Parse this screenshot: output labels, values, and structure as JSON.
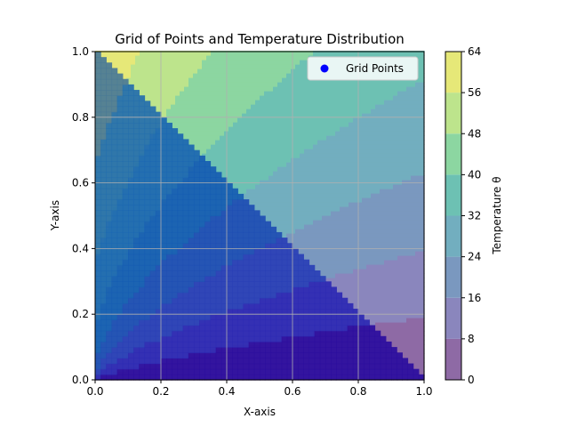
{
  "chart_data": {
    "type": "contour",
    "title": "Grid of Points and Temperature Distribution",
    "xlabel": "X-axis",
    "ylabel": "Y-axis",
    "xlim": [
      0,
      1
    ],
    "ylim": [
      0,
      1
    ],
    "xticks": [
      "0.0",
      "0.2",
      "0.4",
      "0.6",
      "0.8",
      "1.0"
    ],
    "yticks": [
      "0.0",
      "0.2",
      "0.4",
      "0.6",
      "0.8",
      "1.0"
    ],
    "grid": true,
    "legend": {
      "placement": "top-right",
      "entries": [
        {
          "label": "Grid Points",
          "color": "#0000ff",
          "marker": "circle"
        }
      ]
    },
    "colorbar": {
      "label": "Temperature θ",
      "levels": [
        0,
        8,
        16,
        24,
        32,
        40,
        48,
        56,
        64
      ],
      "tick_labels": [
        "0",
        "8",
        "16",
        "24",
        "32",
        "40",
        "48",
        "56",
        "64"
      ],
      "colors": [
        "#8e6aa5",
        "#8a86bd",
        "#7a98bf",
        "#72aebf",
        "#6dc1b3",
        "#8cd6a1",
        "#bde48c",
        "#e6e878"
      ]
    },
    "series": [
      {
        "name": "Grid Points",
        "color": "#0000ff",
        "region": "lower-left triangle x + y ≤ 1",
        "points": "dense uniform grid",
        "band_colors": [
          "#2c0e9e",
          "#2d2ab3",
          "#2a3fb6",
          "#1f4fb3",
          "#165cb2",
          "#1c67b2",
          "#256fac",
          "#4a7a96"
        ]
      }
    ]
  }
}
